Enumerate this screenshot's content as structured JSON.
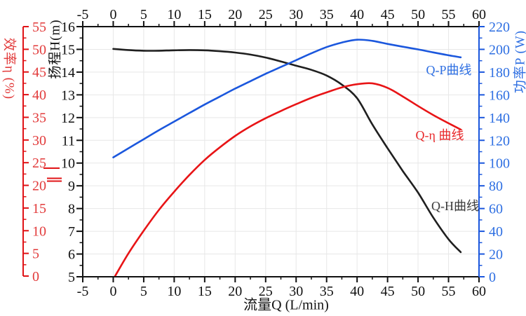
{
  "chart_data": {
    "type": "line",
    "title": "",
    "grid": {
      "show": true,
      "color": "#e7e7e7"
    },
    "x_axis": {
      "label": "流量Q (L/min)",
      "min": -5,
      "max": 60,
      "major_step": 5,
      "minor_step": 2.5,
      "ticks": [
        -5,
        0,
        5,
        10,
        15,
        20,
        25,
        30,
        35,
        40,
        45,
        50,
        55,
        60
      ],
      "position": "top_and_bottom",
      "color": "#111111"
    },
    "y_axes": {
      "efficiency": {
        "label": "效率η (%)",
        "unit": "%",
        "min": 0,
        "max": 55,
        "major_step": 5,
        "minor_step": 2.5,
        "ticks": [
          0,
          5,
          10,
          15,
          20,
          25,
          30,
          35,
          40,
          45,
          50,
          55
        ],
        "text_color": "#e23b3b",
        "line_color": "#e01316",
        "side": "far-left"
      },
      "head": {
        "label": "扬程H(m)",
        "unit": "m",
        "min": 5,
        "max": 16,
        "major_step": 1,
        "minor_step": 0.5,
        "ticks": [
          5,
          6,
          7,
          8,
          9,
          10,
          11,
          12,
          13,
          14,
          15,
          16
        ],
        "text_color": "#111111",
        "line_color": "#111111",
        "side": "left"
      },
      "power": {
        "label": "功率P (W)",
        "unit": "W",
        "min": 0,
        "max": 220,
        "major_step": 20,
        "minor_step": 10,
        "ticks": [
          0,
          20,
          40,
          60,
          80,
          100,
          120,
          140,
          160,
          180,
          200,
          220
        ],
        "text_color": "#2e6fe2",
        "line_color": "#1b57dd",
        "side": "right"
      }
    },
    "series": [
      {
        "id": "q-h-curve",
        "name": "Q-H曲线",
        "axis": "head",
        "color": "#1f1f1f",
        "x": [
          0,
          2.5,
          5,
          7.5,
          10,
          12.5,
          15,
          17.5,
          20,
          22.5,
          25,
          27.5,
          30,
          32.5,
          35,
          37.5,
          40,
          42.5,
          45,
          47.5,
          50,
          52.5,
          55,
          57
        ],
        "y": [
          15.02,
          14.97,
          14.94,
          14.94,
          14.96,
          14.97,
          14.96,
          14.92,
          14.86,
          14.77,
          14.64,
          14.47,
          14.28,
          14.1,
          13.85,
          13.45,
          12.85,
          11.7,
          10.65,
          9.65,
          8.7,
          7.6,
          6.65,
          6.08
        ]
      },
      {
        "id": "q-eta-curve",
        "name": "Q-η 曲线",
        "axis": "efficiency",
        "color": "#e81416",
        "x": [
          0.3,
          2.5,
          5,
          7.5,
          10,
          12.5,
          15,
          17.5,
          20,
          22.5,
          25,
          27.5,
          30,
          32.5,
          35,
          37.5,
          40,
          42.5,
          45,
          47.5,
          50,
          52.5,
          55,
          57
        ],
        "y": [
          0,
          5,
          10,
          14.6,
          18.6,
          22.3,
          25.6,
          28.4,
          30.9,
          33,
          34.8,
          36.4,
          37.9,
          39.3,
          40.5,
          41.6,
          42.3,
          42.5,
          41.5,
          39.6,
          37.5,
          35.5,
          33.7,
          32.3
        ]
      },
      {
        "id": "q-p-curve",
        "name": "Q-P曲线",
        "axis": "power",
        "color": "#1b57dd",
        "x": [
          0,
          2.5,
          5,
          7.5,
          10,
          12.5,
          15,
          17.5,
          20,
          22.5,
          25,
          27.5,
          30,
          32.5,
          35,
          37.5,
          40,
          42.5,
          45,
          47.5,
          50,
          52.5,
          55,
          57
        ],
        "y": [
          105,
          113,
          121,
          129,
          136.5,
          144,
          151.5,
          158.5,
          165.5,
          172,
          178.5,
          184.5,
          190.5,
          196.5,
          202,
          206,
          208.5,
          207.5,
          204.8,
          202.3,
          200,
          197.3,
          194.8,
          193
        ]
      }
    ],
    "curve_labels": {
      "qp": {
        "text": "Q-P曲线"
      },
      "qeta": {
        "text": "Q-η 曲线"
      },
      "qh": {
        "text": "Q-H曲线"
      }
    },
    "annotations": {
      "efficiency_axis_marks": [
        [
          62,
          239,
          23
        ],
        [
          67,
          253.5,
          21
        ],
        [
          67,
          257.5,
          21
        ]
      ]
    }
  }
}
